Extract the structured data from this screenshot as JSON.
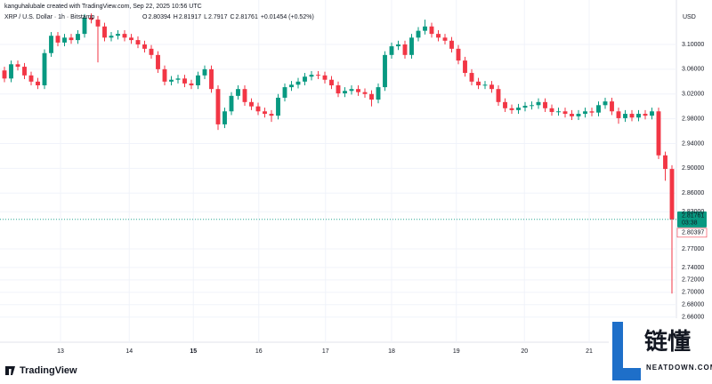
{
  "header": {
    "attribution": "kanguhalubale created with TradingView.com, Sep 22, 2025 10:56 UTC",
    "symbol": "XRP / U.S. Dollar · 1h · Bitstamp",
    "ohlc": [
      {
        "key": "O",
        "value": 2.80394
      },
      {
        "key": "H",
        "value": 2.81917
      },
      {
        "key": "L",
        "value": 2.7917
      },
      {
        "key": "C",
        "value": 2.81761
      }
    ],
    "change": "+0.01454 (+0.52%)"
  },
  "chart_data": {
    "type": "candlestick",
    "currency": "USD",
    "up_color": "#089981",
    "down_color": "#f23645",
    "grid": true,
    "open": [
      3.058,
      3.045,
      3.068,
      3.064,
      3.05,
      3.04,
      3.034,
      3.086,
      3.114,
      3.103,
      3.111,
      3.107,
      3.117,
      3.143,
      3.14,
      3.129,
      3.111,
      3.114,
      3.117,
      3.111,
      3.107,
      3.1,
      3.093,
      3.083,
      3.06,
      3.04,
      3.043,
      3.045,
      3.037,
      3.034,
      3.05,
      3.06,
      3.028,
      2.971,
      2.992,
      3.017,
      3.028,
      3.007,
      3.0,
      2.992,
      2.988,
      2.985,
      3.014,
      3.031,
      3.035,
      3.04,
      3.048,
      3.051,
      3.05,
      3.043,
      3.034,
      3.021,
      3.025,
      3.028,
      3.023,
      3.02,
      3.011,
      3.031,
      3.083,
      3.097,
      3.1,
      3.083,
      3.111,
      3.122,
      3.129,
      3.117,
      3.111,
      3.106,
      3.093,
      3.074,
      3.054,
      3.04,
      3.034,
      3.035,
      3.028,
      3.007,
      2.997,
      2.994,
      2.998,
      3.001,
      3.002,
      3.007,
      2.997,
      2.991,
      2.992,
      2.988,
      2.984,
      2.988,
      2.992,
      2.99,
      3.002,
      3.008,
      2.992,
      2.981,
      2.988,
      2.982,
      2.988,
      2.985,
      2.992,
      2.921,
      2.899
    ],
    "high": [
      3.064,
      3.074,
      3.074,
      3.07,
      3.056,
      3.046,
      3.092,
      3.12,
      3.12,
      3.117,
      3.117,
      3.123,
      3.149,
      3.15,
      3.146,
      3.135,
      3.12,
      3.123,
      3.123,
      3.117,
      3.113,
      3.106,
      3.099,
      3.089,
      3.066,
      3.049,
      3.051,
      3.051,
      3.043,
      3.056,
      3.066,
      3.066,
      3.034,
      2.998,
      3.023,
      3.034,
      3.034,
      3.013,
      3.006,
      2.998,
      2.994,
      3.02,
      3.037,
      3.041,
      3.046,
      3.054,
      3.057,
      3.057,
      3.056,
      3.049,
      3.04,
      3.031,
      3.034,
      3.034,
      3.029,
      3.026,
      3.037,
      3.089,
      3.103,
      3.106,
      3.106,
      3.117,
      3.128,
      3.14,
      3.135,
      3.123,
      3.117,
      3.112,
      3.099,
      3.08,
      3.06,
      3.046,
      3.041,
      3.041,
      3.034,
      3.013,
      3.003,
      3.004,
      3.007,
      3.008,
      3.013,
      3.013,
      3.003,
      2.998,
      2.998,
      2.994,
      2.994,
      2.998,
      2.998,
      3.008,
      3.014,
      3.014,
      2.998,
      2.994,
      2.994,
      2.994,
      2.994,
      2.998,
      2.998,
      2.927,
      2.905
    ],
    "low": [
      3.039,
      3.039,
      3.058,
      3.044,
      3.034,
      3.028,
      3.028,
      3.08,
      3.097,
      3.097,
      3.101,
      3.101,
      3.111,
      3.134,
      3.071,
      3.105,
      3.105,
      3.108,
      3.105,
      3.101,
      3.094,
      3.087,
      3.077,
      3.054,
      3.034,
      3.034,
      3.037,
      3.031,
      3.028,
      3.028,
      3.044,
      3.022,
      2.962,
      2.965,
      2.986,
      3.011,
      3.001,
      2.994,
      2.986,
      2.982,
      2.975,
      2.979,
      3.008,
      3.025,
      3.029,
      3.034,
      3.042,
      3.044,
      3.037,
      3.028,
      3.015,
      3.015,
      3.019,
      3.017,
      3.014,
      3.0,
      3.005,
      3.025,
      3.077,
      3.091,
      3.077,
      3.077,
      3.105,
      3.116,
      3.111,
      3.105,
      3.1,
      3.087,
      3.068,
      3.048,
      3.034,
      3.028,
      3.028,
      3.022,
      3.001,
      2.991,
      2.988,
      2.988,
      2.992,
      2.995,
      2.996,
      2.991,
      2.985,
      2.985,
      2.982,
      2.978,
      2.978,
      2.982,
      2.984,
      2.984,
      2.996,
      2.986,
      2.972,
      2.975,
      2.976,
      2.976,
      2.979,
      2.979,
      2.915,
      2.88,
      2.698
    ],
    "close": [
      3.045,
      3.068,
      3.064,
      3.05,
      3.04,
      3.034,
      3.086,
      3.114,
      3.103,
      3.111,
      3.107,
      3.117,
      3.143,
      3.14,
      3.129,
      3.111,
      3.114,
      3.117,
      3.111,
      3.107,
      3.1,
      3.093,
      3.083,
      3.06,
      3.04,
      3.043,
      3.045,
      3.037,
      3.034,
      3.05,
      3.06,
      3.028,
      2.971,
      2.992,
      3.017,
      3.028,
      3.007,
      3.0,
      2.992,
      2.988,
      2.985,
      3.014,
      3.031,
      3.035,
      3.04,
      3.048,
      3.051,
      3.05,
      3.043,
      3.034,
      3.021,
      3.025,
      3.028,
      3.023,
      3.02,
      3.011,
      3.031,
      3.083,
      3.097,
      3.1,
      3.083,
      3.111,
      3.122,
      3.129,
      3.117,
      3.111,
      3.106,
      3.093,
      3.074,
      3.054,
      3.04,
      3.034,
      3.035,
      3.028,
      3.007,
      2.997,
      2.994,
      2.998,
      3.001,
      3.002,
      3.007,
      2.997,
      2.991,
      2.992,
      2.988,
      2.984,
      2.988,
      2.992,
      2.99,
      3.002,
      3.008,
      2.992,
      2.981,
      2.988,
      2.982,
      2.988,
      2.985,
      2.992,
      2.921,
      2.899,
      2.81761
    ],
    "xlim": [
      -0.667,
      100.667
    ],
    "xticks": [
      {
        "value": 8.4,
        "label": "13"
      },
      {
        "value": 18.7,
        "label": "14"
      },
      {
        "value": 28.3,
        "label": "15"
      },
      {
        "value": 38.1,
        "label": "16"
      },
      {
        "value": 48.1,
        "label": "17"
      },
      {
        "value": 58,
        "label": "18"
      },
      {
        "value": 67.7,
        "label": "19"
      },
      {
        "value": 77.9,
        "label": "20"
      },
      {
        "value": 87.6,
        "label": "21"
      }
    ],
    "ylim": [
      2.6194,
      3.1717
    ],
    "yticks": [
      {
        "value": 3.1,
        "label": "3.10000"
      },
      {
        "value": 3.06,
        "label": "3.06000"
      },
      {
        "value": 3.02,
        "label": "3.02000"
      },
      {
        "value": 2.98,
        "label": "2.98000"
      },
      {
        "value": 2.94,
        "label": "2.94000"
      },
      {
        "value": 2.9,
        "label": "2.90000"
      },
      {
        "value": 2.86,
        "label": "2.86000"
      },
      {
        "value": 2.83,
        "label": "2.83000"
      },
      {
        "value": 2.77,
        "label": "2.77000"
      },
      {
        "value": 2.74,
        "label": "2.74000"
      },
      {
        "value": 2.72,
        "label": "2.72000"
      },
      {
        "value": 2.7,
        "label": "2.70000"
      },
      {
        "value": 2.68,
        "label": "2.68000"
      },
      {
        "value": 2.66,
        "label": "2.66000"
      }
    ],
    "last_price": 2.81761,
    "countdown": "03:38",
    "prev_label": 2.80397
  },
  "branding": {
    "logo": "TradingView",
    "watermark_cn": "链懂",
    "watermark_en": "NEATDOWN.COM"
  }
}
